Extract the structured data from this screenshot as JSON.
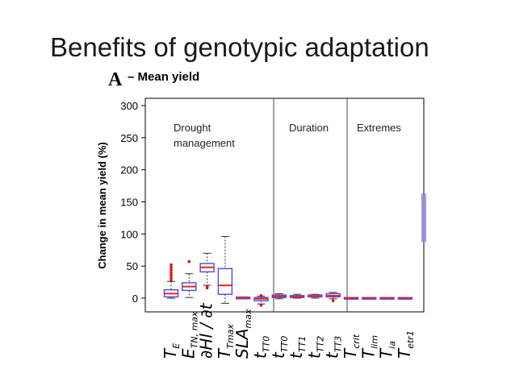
{
  "slide": {
    "title": "Benefits of genotypic adaptation"
  },
  "panel": {
    "letter": "A",
    "subtitle": "– Mean yield"
  },
  "chart_data": {
    "type": "box",
    "title": "– Mean yield",
    "xlabel": "",
    "ylabel": "Change in mean yield (%)",
    "ylim": [
      -10,
      300
    ],
    "yticks": [
      0,
      50,
      100,
      150,
      200,
      250,
      300
    ],
    "groups": [
      {
        "label": "Drought management",
        "lines": [
          "Drought",
          "management"
        ]
      },
      {
        "label": "Duration",
        "lines": [
          "Duration"
        ]
      },
      {
        "label": "Extremes",
        "lines": [
          "Extremes"
        ]
      }
    ],
    "colors": {
      "box": "#4a4adf",
      "median": "#ee2222",
      "outlier": "#dd1111",
      "frame": "#000000",
      "divider": "#444444"
    },
    "categories": [
      {
        "label": "TE",
        "base": "T",
        "sub": "E",
        "group": "Drought management",
        "q1": 2,
        "median": 7,
        "q3": 13,
        "whisker_low": 0,
        "whisker_high": 26,
        "outliers": [
          28,
          32,
          36,
          40,
          44,
          48,
          52
        ]
      },
      {
        "label": "ETN,max",
        "base": "E",
        "sub": "TN, max",
        "group": "Drought management",
        "q1": 12,
        "median": 18,
        "q3": 24,
        "whisker_low": 1,
        "whisker_high": 38,
        "outliers": [
          57
        ]
      },
      {
        "label": "∂Hl / ∂t",
        "base": "∂Hl / ∂t",
        "sub": "",
        "group": "Drought management",
        "q1": 41,
        "median": 48,
        "q3": 54,
        "whisker_low": 20,
        "whisker_high": 70,
        "outliers": [
          16,
          18
        ]
      },
      {
        "label": "TTmax",
        "base": "T",
        "sub": "Tmax",
        "group": "Drought management",
        "q1": 6,
        "median": 20,
        "q3": 46,
        "whisker_low": -8,
        "whisker_high": 96,
        "outliers": []
      },
      {
        "label": "SLAmax",
        "base": "SLA",
        "sub": "max",
        "group": "Drought management",
        "q1": 0.5,
        "median": 1,
        "q3": 1.5,
        "whisker_low": 0,
        "whisker_high": 2,
        "outliers": []
      },
      {
        "label": "tTT0",
        "base": "t",
        "sub": "TT0",
        "group": "Drought management",
        "q1": -4,
        "median": -1,
        "q3": 1,
        "whisker_low": -9,
        "whisker_high": 3,
        "outliers": [
          -11,
          4
        ]
      },
      {
        "label": "tTT0",
        "base": "t",
        "sub": "TT0",
        "group": "Duration",
        "q1": 1,
        "median": 3,
        "q3": 5,
        "whisker_low": -1,
        "whisker_high": 7,
        "outliers": []
      },
      {
        "label": "tTT1",
        "base": "t",
        "sub": "TT1",
        "group": "Duration",
        "q1": 1,
        "median": 2,
        "q3": 4,
        "whisker_low": 0,
        "whisker_high": 6,
        "outliers": []
      },
      {
        "label": "tTT2",
        "base": "t",
        "sub": "TT2",
        "group": "Duration",
        "q1": 2,
        "median": 3,
        "q3": 5,
        "whisker_low": 0,
        "whisker_high": 6,
        "outliers": []
      },
      {
        "label": "tTT3",
        "base": "t",
        "sub": "TT3",
        "group": "Duration",
        "q1": 2,
        "median": 4,
        "q3": 7,
        "whisker_low": -1,
        "whisker_high": 9,
        "outliers": [
          -4
        ]
      },
      {
        "label": "Tcrit",
        "base": "T",
        "sub": "crit",
        "group": "Extremes",
        "q1": 0,
        "median": 0.5,
        "q3": 1,
        "whisker_low": 0,
        "whisker_high": 1,
        "outliers": []
      },
      {
        "label": "Tlim",
        "base": "T",
        "sub": "lim",
        "group": "Extremes",
        "q1": 0,
        "median": 0.5,
        "q3": 1,
        "whisker_low": 0,
        "whisker_high": 1,
        "outliers": []
      },
      {
        "label": "Tia",
        "base": "T",
        "sub": "ia",
        "group": "Extremes",
        "q1": 0,
        "median": 0.5,
        "q3": 1,
        "whisker_low": 0,
        "whisker_high": 1,
        "outliers": []
      },
      {
        "label": "Tetr1",
        "base": "T",
        "sub": "etr1",
        "group": "Extremes",
        "q1": 0,
        "median": 0.5,
        "q3": 1,
        "whisker_low": 0,
        "whisker_high": 1,
        "outliers": []
      }
    ],
    "grid": false,
    "legend": "none"
  }
}
